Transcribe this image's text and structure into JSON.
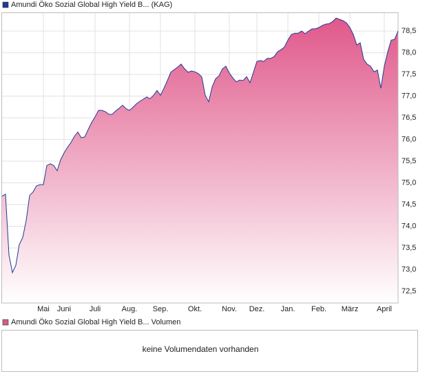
{
  "chart_data": [
    {
      "type": "area",
      "series": [
        {
          "name": "Amundi Öko Sozial Global High Yield B... (KAG)",
          "color": "#1f3a93",
          "fill": "#e0588a",
          "values": [
            74.69,
            74.74,
            73.34,
            72.93,
            73.1,
            73.58,
            73.74,
            74.13,
            74.71,
            74.79,
            74.93,
            74.96,
            74.96,
            75.4,
            75.44,
            75.4,
            75.28,
            75.53,
            75.69,
            75.82,
            75.93,
            76.07,
            76.17,
            76.04,
            76.06,
            76.23,
            76.39,
            76.52,
            76.67,
            76.67,
            76.64,
            76.58,
            76.58,
            76.66,
            76.72,
            76.79,
            76.71,
            76.67,
            76.74,
            76.82,
            76.88,
            76.93,
            76.98,
            76.94,
            77.02,
            77.13,
            77.02,
            77.18,
            77.36,
            77.55,
            77.61,
            77.67,
            77.74,
            77.63,
            77.55,
            77.58,
            77.56,
            77.52,
            77.44,
            77.02,
            76.87,
            77.21,
            77.4,
            77.47,
            77.63,
            77.69,
            77.53,
            77.42,
            77.33,
            77.37,
            77.36,
            77.45,
            77.31,
            77.55,
            77.8,
            77.82,
            77.8,
            77.87,
            77.87,
            77.91,
            78.02,
            78.07,
            78.13,
            78.29,
            78.42,
            78.45,
            78.45,
            78.5,
            78.44,
            78.5,
            78.55,
            78.55,
            78.58,
            78.63,
            78.66,
            78.67,
            78.72,
            78.8,
            78.77,
            78.74,
            78.69,
            78.58,
            78.42,
            78.18,
            78.23,
            77.85,
            77.74,
            77.69,
            77.56,
            77.6,
            77.18,
            77.69,
            78.02,
            78.29,
            78.31,
            78.5
          ]
        }
      ],
      "categories": [
        null,
        null,
        null,
        null,
        null,
        null,
        null,
        null,
        null,
        null,
        null,
        null,
        "Mai",
        null,
        null,
        null,
        null,
        null,
        "Juni",
        null,
        null,
        null,
        null,
        null,
        null,
        null,
        null,
        "Juli",
        null,
        null,
        null,
        null,
        null,
        null,
        null,
        null,
        null,
        "Aug.",
        null,
        null,
        null,
        null,
        null,
        null,
        null,
        null,
        "Sep.",
        null,
        null,
        null,
        null,
        null,
        null,
        null,
        null,
        null,
        "Okt.",
        null,
        null,
        null,
        null,
        null,
        null,
        null,
        null,
        null,
        "Nov.",
        null,
        null,
        null,
        null,
        null,
        null,
        null,
        "Dez.",
        null,
        null,
        null,
        null,
        null,
        null,
        null,
        null,
        "Jan.",
        null,
        null,
        null,
        null,
        null,
        null,
        null,
        null,
        "Feb.",
        null,
        null,
        null,
        null,
        null,
        null,
        null,
        null,
        "März",
        null,
        null,
        null,
        null,
        null,
        null,
        null,
        null,
        null,
        "April",
        null,
        null,
        null,
        null
      ],
      "ylim": [
        72.23,
        78.93
      ],
      "yticks": [
        {
          "value": 72.5,
          "label": "72,5"
        },
        {
          "value": 73.0,
          "label": "73,0"
        },
        {
          "value": 73.5,
          "label": "73,5"
        },
        {
          "value": 74.0,
          "label": "74,0"
        },
        {
          "value": 74.5,
          "label": "74,5"
        },
        {
          "value": 75.0,
          "label": "75,0"
        },
        {
          "value": 75.5,
          "label": "75,5"
        },
        {
          "value": 76.0,
          "label": "76,0"
        },
        {
          "value": 76.5,
          "label": "76,5"
        },
        {
          "value": 77.0,
          "label": "77,0"
        },
        {
          "value": 77.5,
          "label": "77,5"
        },
        {
          "value": 78.0,
          "label": "78,0"
        },
        {
          "value": 78.5,
          "label": "78,5"
        }
      ],
      "grid": true
    },
    {
      "type": "volume",
      "legend": "Amundi Öko Sozial Global High Yield B... Volumen",
      "color": "#d0607e",
      "message": "keine Volumendaten vorhanden"
    }
  ]
}
